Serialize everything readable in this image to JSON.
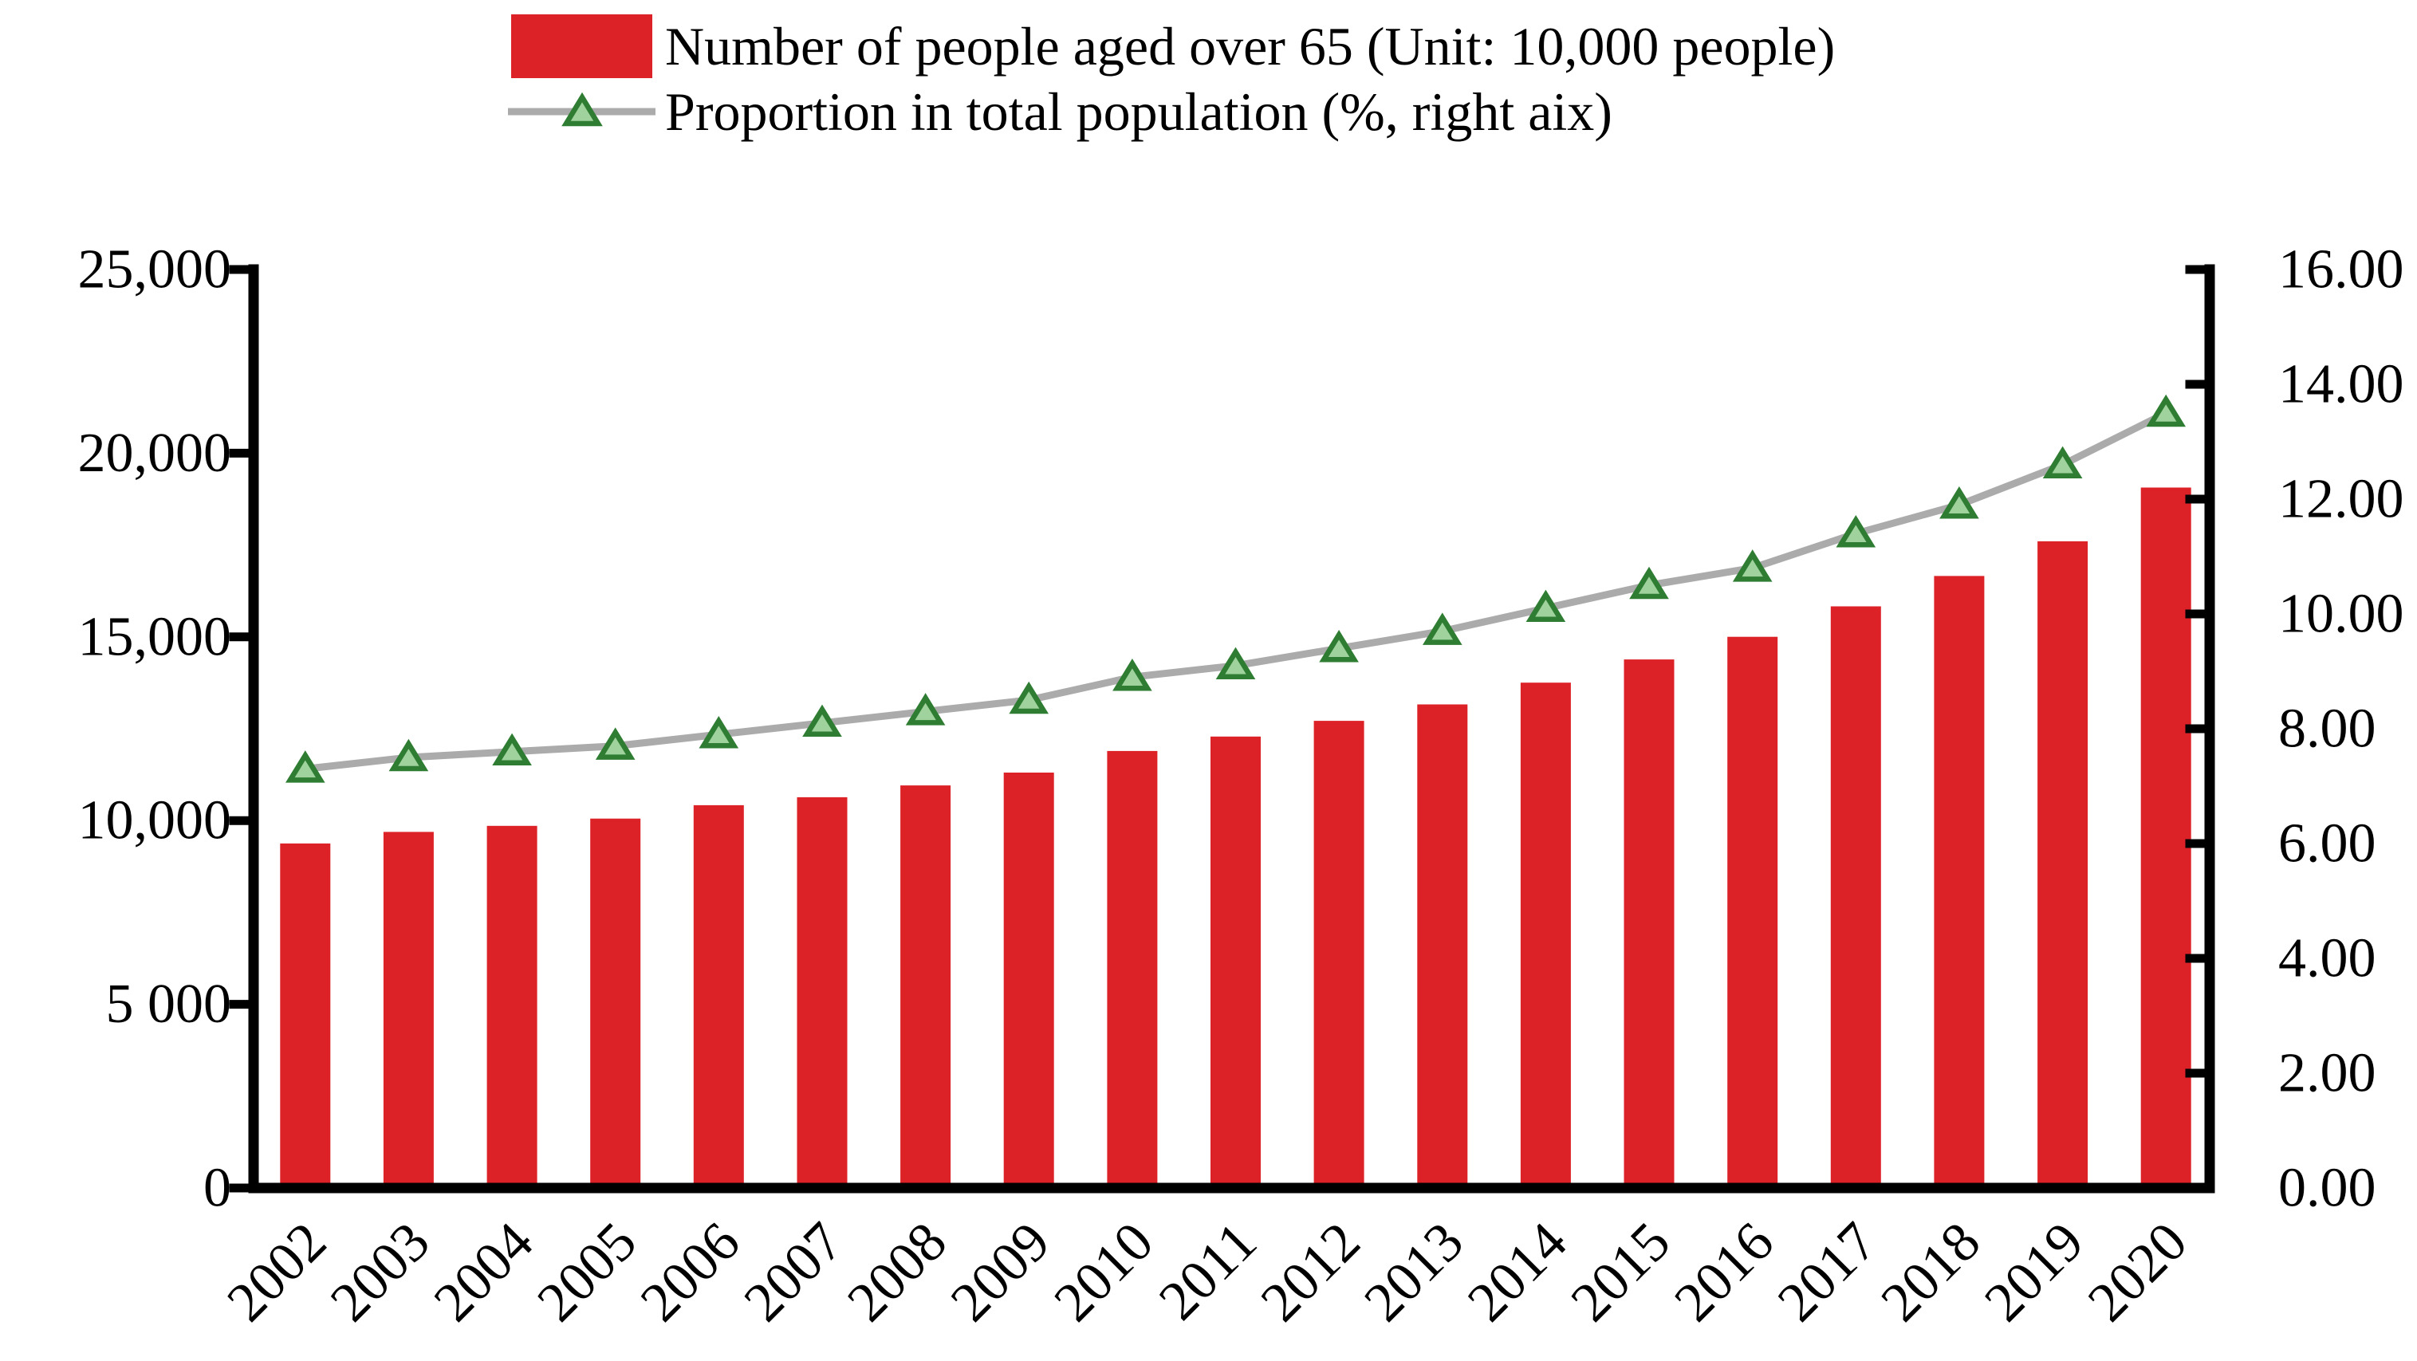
{
  "chart_data": {
    "type": "bar",
    "subtype": "combo-bar-line-dual-axis",
    "title": "",
    "categories": [
      "2002",
      "2003",
      "2004",
      "2005",
      "2006",
      "2007",
      "2008",
      "2009",
      "2010",
      "2011",
      "2012",
      "2013",
      "2014",
      "2015",
      "2016",
      "2017",
      "2018",
      "2019",
      "2020"
    ],
    "series": [
      {
        "name": "Number of people aged over 65 (Unit: 10,000 people)",
        "type": "bar",
        "y_axis": "left",
        "color": "#DC2127",
        "values": [
          9377,
          9692,
          9857,
          10055,
          10419,
          10636,
          10956,
          11307,
          11894,
          12288,
          12714,
          13161,
          13755,
          14386,
          15003,
          15831,
          16658,
          17603,
          19064
        ]
      },
      {
        "name": "Proportion in total population (%, right aix)",
        "type": "line",
        "y_axis": "right",
        "line_color": "#ABABAB",
        "marker_shape": "triangle-up",
        "marker_fill": "#9FD29D",
        "marker_edge": "#2E7D32",
        "values": [
          7.3,
          7.5,
          7.6,
          7.7,
          7.9,
          8.1,
          8.3,
          8.5,
          8.9,
          9.1,
          9.4,
          9.7,
          10.1,
          10.5,
          10.8,
          11.4,
          11.9,
          12.6,
          13.5
        ]
      }
    ],
    "left_axis": {
      "min": 0,
      "max": 25000,
      "step": 5000,
      "tick_labels": [
        "0",
        "5 000",
        "10,000",
        "15,000",
        "20,000",
        "25,000"
      ]
    },
    "right_axis": {
      "min": 0,
      "max": 16,
      "step": 2,
      "tick_labels": [
        "0.00",
        "2.00",
        "4.00",
        "6.00",
        "8.00",
        "10.00",
        "12.00",
        "14.00",
        "16.00"
      ]
    },
    "x_axis": {
      "tick_label_rotation_deg": -45
    },
    "legend_position": "top",
    "grid": false,
    "axis_color": "#000000",
    "background": "#FFFFFF"
  }
}
